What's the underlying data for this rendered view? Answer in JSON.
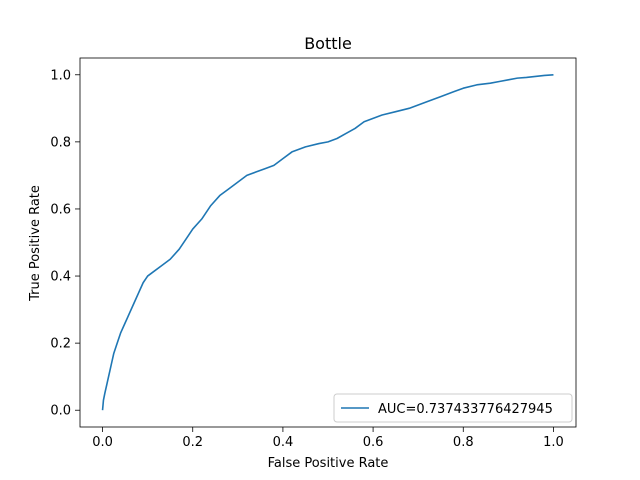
{
  "chart_data": {
    "type": "line",
    "title": "Bottle",
    "xlabel": "False Positive Rate",
    "ylabel": "True Positive Rate",
    "xlim": [
      -0.05,
      1.05
    ],
    "ylim": [
      -0.05,
      1.05
    ],
    "xticks": [
      0.0,
      0.2,
      0.4,
      0.6,
      0.8,
      1.0
    ],
    "xtick_labels": [
      "0.0",
      "0.2",
      "0.4",
      "0.6",
      "0.8",
      "1.0"
    ],
    "yticks": [
      0.0,
      0.2,
      0.4,
      0.6,
      0.8,
      1.0
    ],
    "ytick_labels": [
      "0.0",
      "0.2",
      "0.4",
      "0.6",
      "0.8",
      "1.0"
    ],
    "grid": false,
    "legend_position": "bottom-right",
    "series": [
      {
        "name": "AUC=0.737433776427945",
        "color": "#1f77b4",
        "x": [
          0.0,
          0.002,
          0.005,
          0.01,
          0.015,
          0.02,
          0.025,
          0.03,
          0.035,
          0.04,
          0.05,
          0.06,
          0.07,
          0.08,
          0.09,
          0.1,
          0.11,
          0.13,
          0.15,
          0.17,
          0.19,
          0.2,
          0.22,
          0.24,
          0.26,
          0.28,
          0.3,
          0.32,
          0.34,
          0.36,
          0.38,
          0.4,
          0.42,
          0.45,
          0.48,
          0.5,
          0.52,
          0.54,
          0.56,
          0.58,
          0.6,
          0.62,
          0.65,
          0.68,
          0.7,
          0.72,
          0.75,
          0.78,
          0.8,
          0.83,
          0.86,
          0.88,
          0.9,
          0.92,
          0.94,
          0.96,
          0.98,
          1.0
        ],
        "y": [
          0.0,
          0.03,
          0.05,
          0.08,
          0.11,
          0.14,
          0.17,
          0.19,
          0.21,
          0.23,
          0.26,
          0.29,
          0.32,
          0.35,
          0.38,
          0.4,
          0.41,
          0.43,
          0.45,
          0.48,
          0.52,
          0.54,
          0.57,
          0.61,
          0.64,
          0.66,
          0.68,
          0.7,
          0.71,
          0.72,
          0.73,
          0.75,
          0.77,
          0.785,
          0.795,
          0.8,
          0.81,
          0.825,
          0.84,
          0.86,
          0.87,
          0.88,
          0.89,
          0.9,
          0.91,
          0.92,
          0.935,
          0.95,
          0.96,
          0.97,
          0.975,
          0.98,
          0.985,
          0.99,
          0.992,
          0.995,
          0.998,
          1.0
        ]
      }
    ]
  }
}
